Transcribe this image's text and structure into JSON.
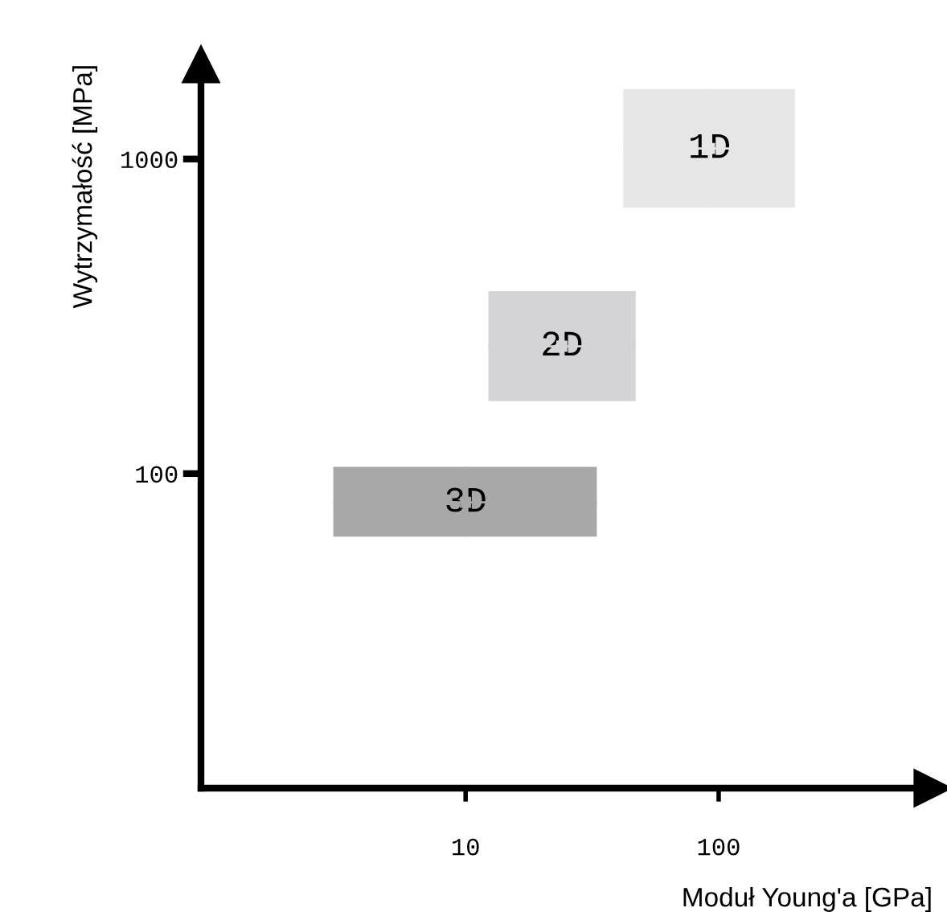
{
  "chart_data": {
    "type": "scatter",
    "xlabel": "Moduł Young'a [GPa]",
    "ylabel": "Wytrzymałość [MPa]",
    "log": "xy",
    "xlim": [
      0.9,
      700
    ],
    "ylim": [
      10,
      2000
    ],
    "xticks": [
      10,
      100
    ],
    "yticks": [
      100,
      1000
    ],
    "series": [
      {
        "name": "1D",
        "color": "#e6e6e6",
        "x": [
          92
        ],
        "values": [
          1080
        ],
        "xerrors": [
          [
            42,
            200
          ]
        ],
        "errors": [
          [
            700,
            1670
          ]
        ]
      },
      {
        "name": "2D",
        "color": "#d4d4d6",
        "x": [
          24
        ],
        "values": [
          254
        ],
        "xerrors": [
          [
            12.3,
            47
          ]
        ],
        "errors": [
          [
            170,
            380
          ]
        ]
      },
      {
        "name": "3D",
        "color": "#a8a8a8",
        "x": [
          10
        ],
        "values": [
          81
        ],
        "xerrors": [
          [
            3,
            33
          ]
        ],
        "errors": [
          [
            63,
            105
          ]
        ]
      }
    ]
  }
}
